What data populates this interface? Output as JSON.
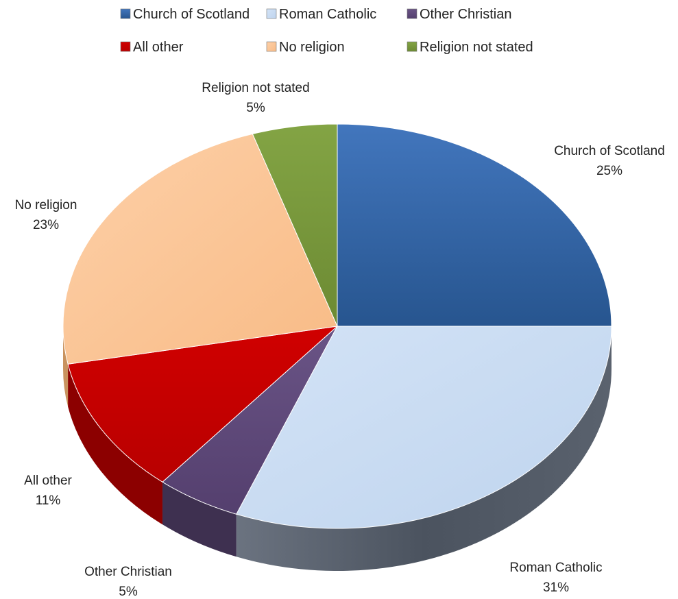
{
  "chart_data": {
    "type": "pie",
    "title": "",
    "legend_position": "top",
    "series": [
      {
        "slices": [
          {
            "label": "Church of Scotland",
            "value": 25,
            "display": "25%",
            "color": "#3a6fb0"
          },
          {
            "label": "Roman Catholic",
            "value": 31,
            "display": "31%",
            "color": "#c9dcf3"
          },
          {
            "label": "Other Christian",
            "value": 5,
            "display": "5%",
            "color": "#5f4b7a"
          },
          {
            "label": "All other",
            "value": 11,
            "display": "11%",
            "color": "#c90000"
          },
          {
            "label": "No religion",
            "value": 23,
            "display": "23%",
            "color": "#fbc596"
          },
          {
            "label": "Religion not stated",
            "value": 5,
            "display": "5%",
            "color": "#7a9a3c"
          }
        ]
      }
    ]
  }
}
